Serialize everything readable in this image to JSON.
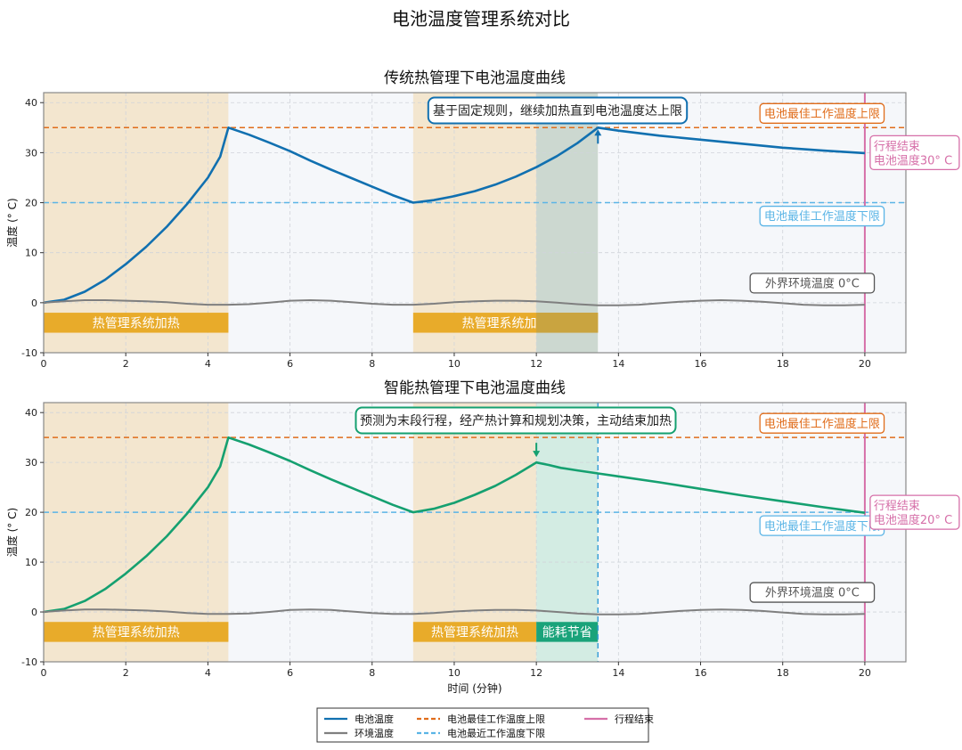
{
  "figure": {
    "title": "电池温度管理系统对比"
  },
  "chart_data": [
    {
      "type": "line",
      "title": "传统热管理下电池温度曲线",
      "xlabel": "",
      "ylabel": "温度 (° C)",
      "xlim": [
        0,
        21
      ],
      "ylim": [
        -10,
        42
      ],
      "xticks": [
        0,
        2,
        4,
        6,
        8,
        10,
        12,
        14,
        16,
        18,
        20
      ],
      "yticks": [
        -10,
        0,
        10,
        20,
        30,
        40
      ],
      "grid": true,
      "series": [
        {
          "name": "电池温度",
          "color": "#1170b0",
          "points": [
            [
              0,
              0
            ],
            [
              0.5,
              0.6
            ],
            [
              1,
              2.2
            ],
            [
              1.5,
              4.6
            ],
            [
              2,
              7.7
            ],
            [
              2.5,
              11.2
            ],
            [
              3,
              15.2
            ],
            [
              3.5,
              19.8
            ],
            [
              4,
              25
            ],
            [
              4.3,
              29.2
            ],
            [
              4.5,
              35
            ],
            [
              5,
              33.6
            ],
            [
              5.5,
              32
            ],
            [
              6,
              30.3
            ],
            [
              6.5,
              28.4
            ],
            [
              7,
              26.6
            ],
            [
              7.5,
              24.9
            ],
            [
              8,
              23.2
            ],
            [
              8.5,
              21.5
            ],
            [
              9,
              20
            ],
            [
              9.5,
              20.5
            ],
            [
              10,
              21.3
            ],
            [
              10.5,
              22.3
            ],
            [
              11,
              23.6
            ],
            [
              11.5,
              25.2
            ],
            [
              12,
              27.1
            ],
            [
              12.5,
              29.3
            ],
            [
              13,
              31.9
            ],
            [
              13.5,
              35
            ],
            [
              14,
              34.4
            ],
            [
              15,
              33.4
            ],
            [
              16,
              32.6
            ],
            [
              17,
              31.8
            ],
            [
              18,
              31
            ],
            [
              19,
              30.4
            ],
            [
              20,
              29.9
            ]
          ]
        },
        {
          "name": "环境温度",
          "color": "#7f7f7f",
          "points": [
            [
              0,
              0
            ],
            [
              0.5,
              0.3
            ],
            [
              1,
              0.5
            ],
            [
              1.5,
              0.5
            ],
            [
              2,
              0.4
            ],
            [
              2.5,
              0.3
            ],
            [
              3,
              0.1
            ],
            [
              3.5,
              -0.2
            ],
            [
              4,
              -0.4
            ],
            [
              4.5,
              -0.4
            ],
            [
              5,
              -0.3
            ],
            [
              5.5,
              0
            ],
            [
              6,
              0.4
            ],
            [
              6.5,
              0.5
            ],
            [
              7,
              0.4
            ],
            [
              7.5,
              0.1
            ],
            [
              8,
              -0.2
            ],
            [
              8.5,
              -0.4
            ],
            [
              9,
              -0.4
            ],
            [
              9.5,
              -0.2
            ],
            [
              10,
              0.1
            ],
            [
              10.5,
              0.3
            ],
            [
              11,
              0.4
            ],
            [
              11.5,
              0.4
            ],
            [
              12,
              0.3
            ],
            [
              12.5,
              0
            ],
            [
              13,
              -0.3
            ],
            [
              13.5,
              -0.5
            ],
            [
              14,
              -0.5
            ],
            [
              14.5,
              -0.4
            ],
            [
              15,
              -0.1
            ],
            [
              15.5,
              0.2
            ],
            [
              16,
              0.4
            ],
            [
              16.5,
              0.5
            ],
            [
              17,
              0.4
            ],
            [
              17.5,
              0.2
            ],
            [
              18,
              -0.1
            ],
            [
              18.5,
              -0.4
            ],
            [
              19,
              -0.5
            ],
            [
              19.5,
              -0.5
            ],
            [
              20,
              -0.4
            ]
          ]
        }
      ],
      "reference_lines": [
        {
          "axis": "y",
          "value": 35,
          "label": "电池最佳工作温度上限",
          "color": "#e06c1a",
          "style": "dashed"
        },
        {
          "axis": "y",
          "value": 20,
          "label": "电池最佳工作温度下限",
          "color": "#5ab4e6",
          "style": "dashed"
        },
        {
          "axis": "x",
          "value": 20,
          "color": "#d66fa8",
          "style": "solid"
        }
      ],
      "shaded_regions": [
        {
          "x_from": 0,
          "x_to": 4.5,
          "color": "#f3e6cf"
        },
        {
          "x_from": 4.5,
          "x_to": 9,
          "color": "#f5f7fa"
        },
        {
          "x_from": 9,
          "x_to": 13.5,
          "color": "#f3e6cf"
        },
        {
          "x_from": 12,
          "x_to": 13.5,
          "color": "#ccd8d0"
        },
        {
          "x_from": 13.5,
          "x_to": 20,
          "color": "#f5f7fa"
        }
      ],
      "bands": [
        {
          "x_from": 0,
          "x_to": 4.5,
          "label": "热管理系统加热",
          "color": "#e8ab2a"
        },
        {
          "x_from": 9,
          "x_to": 13.5,
          "label": "热管理系统加热",
          "color": "#e8ab2a"
        },
        {
          "x_from": 12,
          "x_to": 13.5,
          "label": "",
          "color": "#c9a440"
        }
      ],
      "annotations": {
        "callout": "基于固定规则，继续加热直到电池温度达上限",
        "callout_color": "#1170b0",
        "arrow_at": [
          13.5,
          35
        ],
        "arrow_direction": "up",
        "upper_label": "电池最佳工作温度上限",
        "lower_label": "电池最佳工作温度下限",
        "ambient_label": "外界环境温度 0°C",
        "end_label_line1": "行程结束",
        "end_label_line2": "电池温度30° C"
      }
    },
    {
      "type": "line",
      "title": "智能热管理下电池温度曲线",
      "xlabel": "时间 (分钟)",
      "ylabel": "温度 (° C)",
      "xlim": [
        0,
        21
      ],
      "ylim": [
        -10,
        42
      ],
      "xticks": [
        0,
        2,
        4,
        6,
        8,
        10,
        12,
        14,
        16,
        18,
        20
      ],
      "yticks": [
        -10,
        0,
        10,
        20,
        30,
        40
      ],
      "grid": true,
      "series": [
        {
          "name": "电池温度",
          "color": "#15a070",
          "points": [
            [
              0,
              0
            ],
            [
              0.5,
              0.6
            ],
            [
              1,
              2.2
            ],
            [
              1.5,
              4.6
            ],
            [
              2,
              7.7
            ],
            [
              2.5,
              11.2
            ],
            [
              3,
              15.2
            ],
            [
              3.5,
              19.8
            ],
            [
              4,
              25
            ],
            [
              4.3,
              29.2
            ],
            [
              4.5,
              35
            ],
            [
              5,
              33.6
            ],
            [
              5.5,
              32
            ],
            [
              6,
              30.3
            ],
            [
              6.5,
              28.4
            ],
            [
              7,
              26.6
            ],
            [
              7.5,
              24.9
            ],
            [
              8,
              23.2
            ],
            [
              8.5,
              21.5
            ],
            [
              9,
              20
            ],
            [
              9.5,
              20.7
            ],
            [
              10,
              21.9
            ],
            [
              10.5,
              23.5
            ],
            [
              11,
              25.3
            ],
            [
              11.5,
              27.5
            ],
            [
              12,
              30
            ],
            [
              12.3,
              29.5
            ],
            [
              12.6,
              28.9
            ],
            [
              13,
              28.4
            ],
            [
              13.5,
              27.8
            ],
            [
              14,
              27.2
            ],
            [
              15,
              26
            ],
            [
              16,
              24.7
            ],
            [
              17,
              23.4
            ],
            [
              18,
              22.2
            ],
            [
              19,
              21
            ],
            [
              20,
              19.9
            ]
          ]
        },
        {
          "name": "环境温度",
          "color": "#7f7f7f",
          "points": [
            [
              0,
              0
            ],
            [
              0.5,
              0.3
            ],
            [
              1,
              0.5
            ],
            [
              1.5,
              0.5
            ],
            [
              2,
              0.4
            ],
            [
              2.5,
              0.3
            ],
            [
              3,
              0.1
            ],
            [
              3.5,
              -0.2
            ],
            [
              4,
              -0.4
            ],
            [
              4.5,
              -0.4
            ],
            [
              5,
              -0.3
            ],
            [
              5.5,
              0
            ],
            [
              6,
              0.4
            ],
            [
              6.5,
              0.5
            ],
            [
              7,
              0.4
            ],
            [
              7.5,
              0.1
            ],
            [
              8,
              -0.2
            ],
            [
              8.5,
              -0.4
            ],
            [
              9,
              -0.4
            ],
            [
              9.5,
              -0.2
            ],
            [
              10,
              0.1
            ],
            [
              10.5,
              0.3
            ],
            [
              11,
              0.4
            ],
            [
              11.5,
              0.4
            ],
            [
              12,
              0.3
            ],
            [
              12.5,
              0
            ],
            [
              13,
              -0.3
            ],
            [
              13.5,
              -0.5
            ],
            [
              14,
              -0.5
            ],
            [
              14.5,
              -0.4
            ],
            [
              15,
              -0.1
            ],
            [
              15.5,
              0.2
            ],
            [
              16,
              0.4
            ],
            [
              16.5,
              0.5
            ],
            [
              17,
              0.4
            ],
            [
              17.5,
              0.2
            ],
            [
              18,
              -0.1
            ],
            [
              18.5,
              -0.4
            ],
            [
              19,
              -0.5
            ],
            [
              19.5,
              -0.5
            ],
            [
              20,
              -0.4
            ]
          ]
        }
      ],
      "reference_lines": [
        {
          "axis": "y",
          "value": 35,
          "label": "电池最佳工作温度上限",
          "color": "#e06c1a",
          "style": "dashed"
        },
        {
          "axis": "y",
          "value": 20,
          "label": "电池最佳工作温度下限",
          "color": "#5ab4e6",
          "style": "dashed"
        },
        {
          "axis": "x",
          "value": 13.5,
          "color": "#3aa0d8",
          "style": "dashed"
        },
        {
          "axis": "x",
          "value": 20,
          "color": "#d66fa8",
          "style": "solid"
        }
      ],
      "shaded_regions": [
        {
          "x_from": 0,
          "x_to": 4.5,
          "color": "#f3e6cf"
        },
        {
          "x_from": 4.5,
          "x_to": 9,
          "color": "#f5f7fa"
        },
        {
          "x_from": 9,
          "x_to": 12,
          "color": "#f3e6cf"
        },
        {
          "x_from": 12,
          "x_to": 13.5,
          "color": "#d3ece3"
        },
        {
          "x_from": 13.5,
          "x_to": 20,
          "color": "#f5f7fa"
        }
      ],
      "bands": [
        {
          "x_from": 0,
          "x_to": 4.5,
          "label": "热管理系统加热",
          "color": "#e8ab2a"
        },
        {
          "x_from": 9,
          "x_to": 12,
          "label": "热管理系统加热",
          "color": "#e8ab2a"
        },
        {
          "x_from": 12,
          "x_to": 13.5,
          "label": "能耗节省",
          "color": "#1aa37a"
        }
      ],
      "annotations": {
        "callout": "预测为末段行程，经产热计算和规划决策，主动结束加热",
        "callout_color": "#15a070",
        "arrow_at": [
          12,
          30
        ],
        "arrow_direction": "down",
        "upper_label": "电池最佳工作温度上限",
        "lower_label": "电池最佳工作温度下限",
        "ambient_label": "外界环境温度 0°C",
        "end_label_line1": "行程结束",
        "end_label_line2": "电池温度20° C"
      }
    }
  ],
  "legend": {
    "placement": "bottom-center",
    "items": [
      {
        "label": "电池温度",
        "color": "#1170b0",
        "style": "solid"
      },
      {
        "label": "环境温度",
        "color": "#7f7f7f",
        "style": "solid"
      },
      {
        "label": "电池最佳工作温度上限",
        "color": "#e06c1a",
        "style": "dashed"
      },
      {
        "label": "电池最近工作温度下限",
        "color": "#5ab4e6",
        "style": "dashed"
      },
      {
        "label": "行程结束",
        "color": "#d66fa8",
        "style": "solid"
      }
    ]
  }
}
